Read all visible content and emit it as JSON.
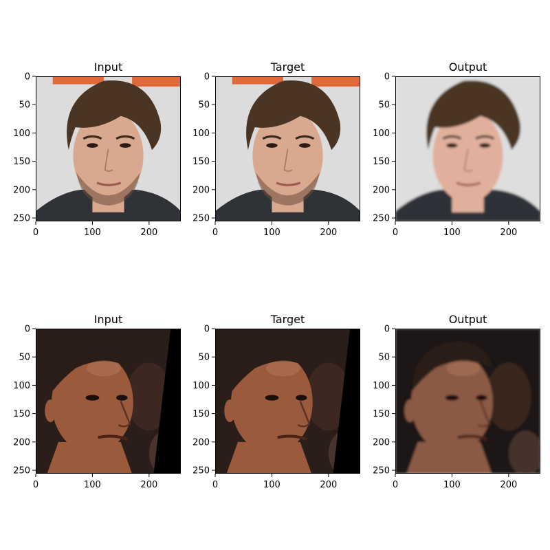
{
  "figure": {
    "rows": [
      {
        "panels": [
          {
            "title": "Input",
            "kind": "input",
            "scene": "boy",
            "bg": "#dcdcdc"
          },
          {
            "title": "Target",
            "kind": "target",
            "scene": "boy",
            "bg": "#dcdcdc"
          },
          {
            "title": "Output",
            "kind": "output",
            "scene": "boy",
            "bg": "#dedede"
          }
        ]
      },
      {
        "panels": [
          {
            "title": "Input",
            "kind": "input",
            "scene": "player",
            "bg": "#2a1d1a"
          },
          {
            "title": "Target",
            "kind": "target",
            "scene": "player",
            "bg": "#2a1d1a"
          },
          {
            "title": "Output",
            "kind": "output",
            "scene": "player",
            "bg": "#1f1816"
          }
        ]
      }
    ],
    "y_ticks": [
      "0",
      "50",
      "100",
      "150",
      "200",
      "250"
    ],
    "x_ticks": [
      "0",
      "100",
      "200"
    ],
    "y_tick_values": [
      0,
      50,
      100,
      150,
      200,
      250
    ],
    "x_tick_values": [
      0,
      100,
      200
    ],
    "image_extent": [
      0,
      256
    ],
    "colors": {
      "skin_light": "#d9a98f",
      "skin_light_output": "#e0b09c",
      "hair_brown": "#4a3424",
      "skin_dark": "#9b5a3c",
      "skin_dark_output": "#8a5a44",
      "jacket": "#2f3338",
      "banner": "#e0693a"
    }
  }
}
